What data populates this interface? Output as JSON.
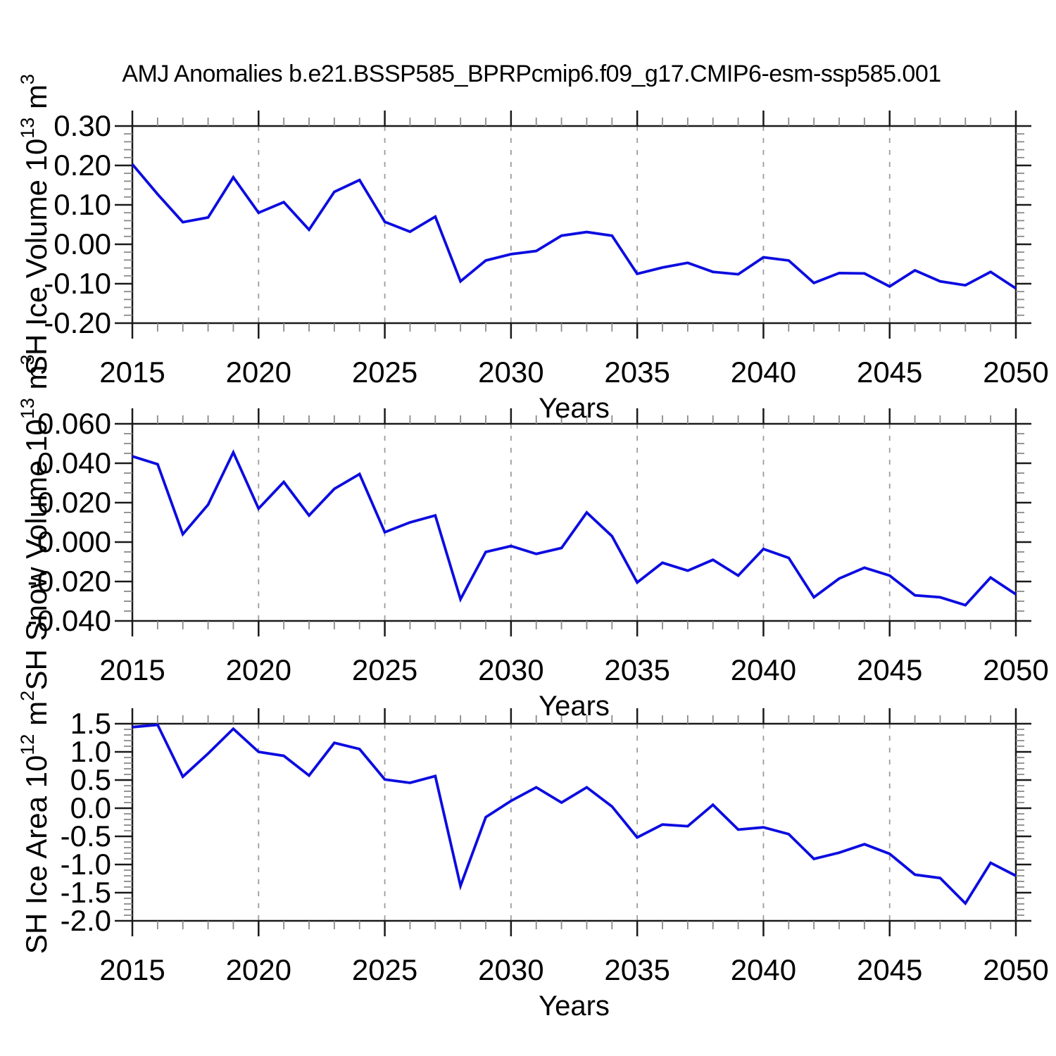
{
  "title": "AMJ Anomalies b.e21.BSSP585_BPRPcmip6.f09_g17.CMIP6-esm-ssp585.001",
  "colors": {
    "line": "#0c0ce0",
    "frame": "#1a1a1a",
    "major_tick": "#1a1a1a",
    "minor_tick": "#8a8a8a",
    "grid": "#9c9c9c",
    "background": "#ffffff",
    "text": "#000000"
  },
  "chart_data": [
    {
      "type": "line",
      "title": "AMJ Anomalies b.e21.BSSP585_BPRPcmip6.f09_g17.CMIP6-esm-ssp585.001",
      "ylabel": "SH Ice Volume 10^13 m^3",
      "ylabel_segments": [
        {
          "text": "SH Ice Volume 10"
        },
        {
          "text": "13",
          "sup": true
        },
        {
          "text": " m"
        },
        {
          "text": "3",
          "sup": true
        }
      ],
      "xlabel": "Years",
      "xlim": [
        2015,
        2050
      ],
      "ylim": [
        -0.2,
        0.3
      ],
      "xtick_values": [
        2015,
        2020,
        2025,
        2030,
        2035,
        2040,
        2045,
        2050
      ],
      "xtick_labels": [
        "2015",
        "2020",
        "2025",
        "2030",
        "2035",
        "2040",
        "2045",
        "2050"
      ],
      "x_minor_step": 1,
      "ytick_values": [
        0.3,
        0.2,
        0.1,
        0.0,
        -0.1,
        -0.2
      ],
      "ytick_labels": [
        "0.30",
        "0.20",
        "0.10",
        "0.00",
        "-0.10",
        "-0.20"
      ],
      "y_minor_step": 0.02,
      "grid_x_values": [
        2020,
        2025,
        2030,
        2035,
        2040,
        2045
      ],
      "grid": "vertical-dashed",
      "legend": null,
      "x": [
        2015,
        2016,
        2017,
        2018,
        2019,
        2020,
        2021,
        2022,
        2023,
        2024,
        2025,
        2026,
        2027,
        2028,
        2029,
        2030,
        2031,
        2032,
        2033,
        2034,
        2035,
        2036,
        2037,
        2038,
        2039,
        2040,
        2041,
        2042,
        2043,
        2044,
        2045,
        2046,
        2047,
        2048,
        2049,
        2050
      ],
      "values": [
        0.203,
        0.127,
        0.056,
        0.068,
        0.17,
        0.08,
        0.107,
        0.037,
        0.133,
        0.163,
        0.057,
        0.032,
        0.07,
        -0.094,
        -0.041,
        -0.025,
        -0.017,
        0.022,
        0.031,
        0.022,
        -0.075,
        -0.059,
        -0.047,
        -0.07,
        -0.076,
        -0.033,
        -0.041,
        -0.098,
        -0.073,
        -0.074,
        -0.107,
        -0.066,
        -0.094,
        -0.104,
        -0.07,
        -0.112
      ]
    },
    {
      "type": "line",
      "title": "AMJ Anomalies b.e21.BSSP585_BPRPcmip6.f09_g17.CMIP6-esm-ssp585.001",
      "ylabel": "SH Snow Volume 10^13 m^3",
      "ylabel_segments": [
        {
          "text": "SH Snow Volume 10"
        },
        {
          "text": "13",
          "sup": true
        },
        {
          "text": " m"
        },
        {
          "text": "3",
          "sup": true
        }
      ],
      "xlabel": "Years",
      "xlim": [
        2015,
        2050
      ],
      "ylim": [
        -0.04,
        0.06
      ],
      "xtick_values": [
        2015,
        2020,
        2025,
        2030,
        2035,
        2040,
        2045,
        2050
      ],
      "xtick_labels": [
        "2015",
        "2020",
        "2025",
        "2030",
        "2035",
        "2040",
        "2045",
        "2050"
      ],
      "x_minor_step": 1,
      "ytick_values": [
        0.06,
        0.04,
        0.02,
        0.0,
        -0.02,
        -0.04
      ],
      "ytick_labels": [
        "0.060",
        "0.040",
        "0.020",
        "0.000",
        "-0.020",
        "-0.040"
      ],
      "y_minor_step": 0.005,
      "grid_x_values": [
        2020,
        2025,
        2030,
        2035,
        2040,
        2045
      ],
      "grid": "vertical-dashed",
      "legend": null,
      "x": [
        2015,
        2016,
        2017,
        2018,
        2019,
        2020,
        2021,
        2022,
        2023,
        2024,
        2025,
        2026,
        2027,
        2028,
        2029,
        2030,
        2031,
        2032,
        2033,
        2034,
        2035,
        2036,
        2037,
        2038,
        2039,
        2040,
        2041,
        2042,
        2043,
        2044,
        2045,
        2046,
        2047,
        2048,
        2049,
        2050
      ],
      "values": [
        0.0435,
        0.0395,
        0.004,
        0.019,
        0.0455,
        0.017,
        0.0305,
        0.0135,
        0.027,
        0.0345,
        0.005,
        0.01,
        0.0135,
        -0.029,
        -0.005,
        -0.002,
        -0.006,
        -0.003,
        0.015,
        0.003,
        -0.0205,
        -0.0105,
        -0.0145,
        -0.009,
        -0.017,
        -0.0035,
        -0.008,
        -0.028,
        -0.0185,
        -0.013,
        -0.017,
        -0.027,
        -0.028,
        -0.032,
        -0.018,
        -0.0265
      ]
    },
    {
      "type": "line",
      "title": "AMJ Anomalies b.e21.BSSP585_BPRPcmip6.f09_g17.CMIP6-esm-ssp585.001",
      "ylabel": "SH Ice Area 10^12 m^2",
      "ylabel_segments": [
        {
          "text": "SH Ice Area 10"
        },
        {
          "text": "12",
          "sup": true
        },
        {
          "text": " m"
        },
        {
          "text": "2",
          "sup": true
        }
      ],
      "xlabel": "Years",
      "xlim": [
        2015,
        2050
      ],
      "ylim": [
        -2.0,
        1.5
      ],
      "xtick_values": [
        2015,
        2020,
        2025,
        2030,
        2035,
        2040,
        2045,
        2050
      ],
      "xtick_labels": [
        "2015",
        "2020",
        "2025",
        "2030",
        "2035",
        "2040",
        "2045",
        "2050"
      ],
      "x_minor_step": 1,
      "ytick_values": [
        1.5,
        1.0,
        0.5,
        0.0,
        -0.5,
        -1.0,
        -1.5,
        -2.0
      ],
      "ytick_labels": [
        "1.5",
        "1.0",
        "0.5",
        "0.0",
        "-0.5",
        "-1.0",
        "-1.5",
        "-2.0"
      ],
      "y_minor_step": 0.1,
      "grid_x_values": [
        2020,
        2025,
        2030,
        2035,
        2040,
        2045
      ],
      "grid": "vertical-dashed",
      "legend": null,
      "x": [
        2015,
        2016,
        2017,
        2018,
        2019,
        2020,
        2021,
        2022,
        2023,
        2024,
        2025,
        2026,
        2027,
        2028,
        2029,
        2030,
        2031,
        2032,
        2033,
        2034,
        2035,
        2036,
        2037,
        2038,
        2039,
        2040,
        2041,
        2042,
        2043,
        2044,
        2045,
        2046,
        2047,
        2048,
        2049,
        2050
      ],
      "values": [
        1.44,
        1.48,
        0.56,
        0.97,
        1.41,
        1.0,
        0.93,
        0.58,
        1.16,
        1.05,
        0.51,
        0.45,
        0.57,
        -1.38,
        -0.16,
        0.13,
        0.37,
        0.1,
        0.37,
        0.03,
        -0.52,
        -0.29,
        -0.32,
        0.06,
        -0.38,
        -0.34,
        -0.46,
        -0.9,
        -0.79,
        -0.64,
        -0.81,
        -1.18,
        -1.24,
        -1.69,
        -0.97,
        -1.2
      ]
    }
  ]
}
